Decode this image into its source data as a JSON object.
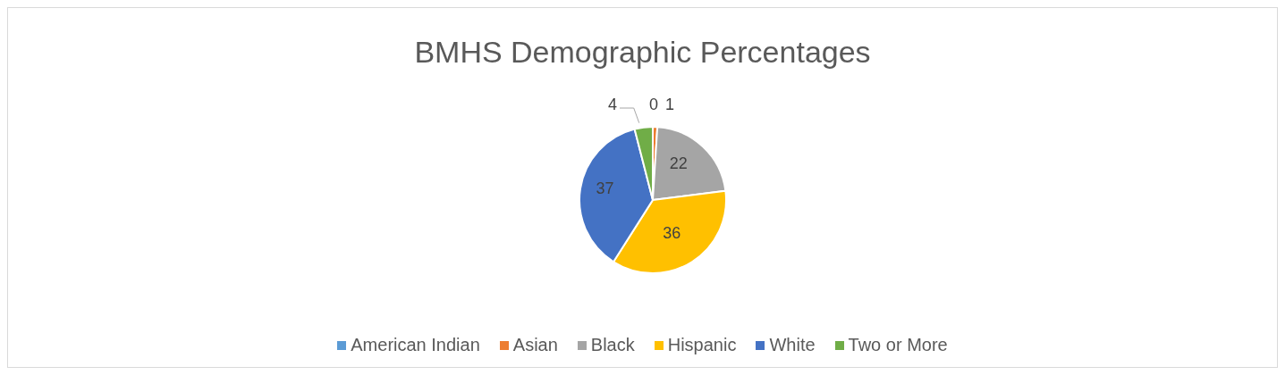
{
  "chart_data": {
    "type": "pie",
    "title": "BMHS Demographic Percentages",
    "categories": [
      "American Indian",
      "Asian",
      "Black",
      "Hispanic",
      "White",
      "Two or More"
    ],
    "values": [
      0,
      1,
      22,
      36,
      37,
      4
    ],
    "colors": [
      "#5b9bd5",
      "#ed7d31",
      "#a5a5a5",
      "#ffc000",
      "#4472c4",
      "#70ad47"
    ],
    "value_labels": [
      "0",
      "1",
      "22",
      "36",
      "37",
      "4"
    ],
    "legend": "bottom"
  }
}
